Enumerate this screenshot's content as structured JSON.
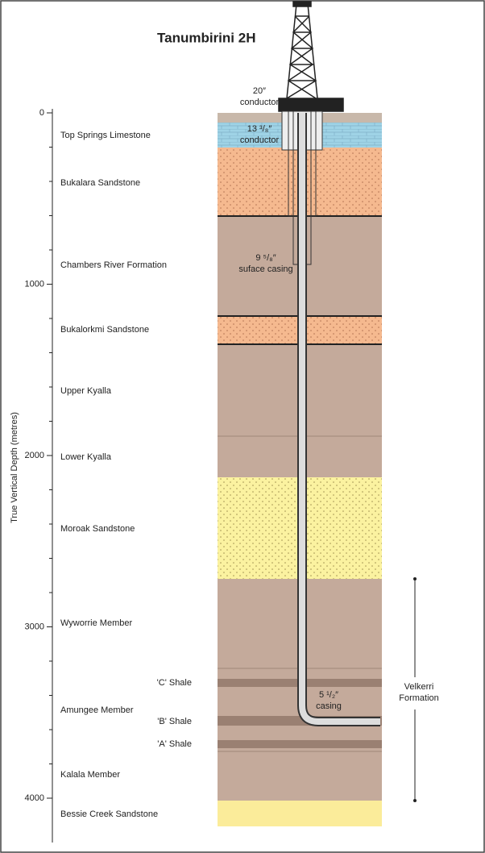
{
  "title": "Tanumbirini 2H",
  "axis": {
    "label": "True Vertical Depth  (metres)",
    "ticks": [
      0,
      1000,
      2000,
      3000,
      4000
    ]
  },
  "formations": [
    "Top Springs Limestone",
    "Bukalara Sandstone",
    "Chambers River Formation",
    "Bukalorkmi Sandstone",
    "Upper Kyalla",
    "Lower Kyalla",
    "Moroak Sandstone",
    "Wyworrie Member",
    "Amungee Member",
    "Kalala Member",
    "Bessie Creek Sandstone"
  ],
  "shales": [
    "'C' Shale",
    "'B' Shale",
    "'A' Shale"
  ],
  "casings": [
    {
      "size": "20″",
      "name": "conductor"
    },
    {
      "size": "13 ³/₈″",
      "name": "conductor"
    },
    {
      "size": "9 ⁵/₈″",
      "name": "suface casing"
    },
    {
      "size": "5 ¹/₂″",
      "name": "casing"
    }
  ],
  "bracket": {
    "line1": "Velkerri",
    "line2": "Formation"
  }
}
